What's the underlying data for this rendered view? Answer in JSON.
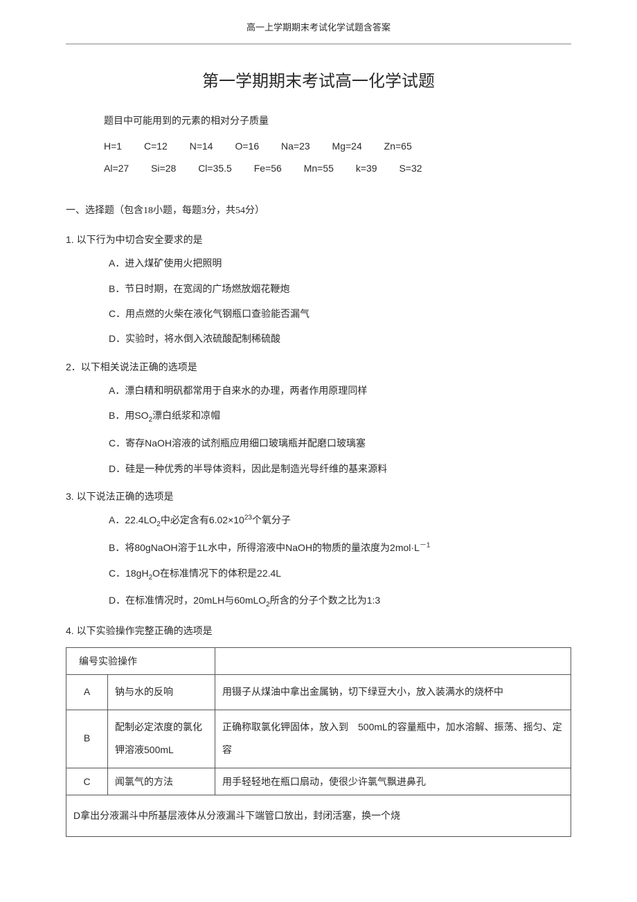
{
  "page_header": "高一上学期期末考试化学试题含答案",
  "title": "第一学期期末考试高一化学试题",
  "molar_intro": "题目中可能用到的元素的相对分子质量",
  "molar_line1": {
    "h": "H=1",
    "c": "C=12",
    "n": "N=14",
    "o": "O=16",
    "na": "Na=23",
    "mg": "Mg=24",
    "zn": "Zn=65"
  },
  "molar_line2": {
    "al": "Al=27",
    "si": "Si=28",
    "cl": "Cl=35.5",
    "fe": "Fe=56",
    "mn": "Mn=55",
    "k": "k=39",
    "s": "S=32"
  },
  "section1": "一、选择题（包含18小题，每题3分，共54分）",
  "q1": {
    "stem": "1. 以下行为中切合安全要求的是",
    "a": "A．进入煤矿使用火把照明",
    "b": "B．节日时期，在宽阔的广场燃放烟花鞭炮",
    "c": "C．用点燃的火柴在液化气钢瓶口查验能否漏气",
    "d": "D．实验时，将水倒入浓硫酸配制稀硫酸"
  },
  "q2": {
    "stem": "2．以下相关说法正确的选项是",
    "a": "A．漂白精和明矾都常用于自来水的办理，两者作用原理同样",
    "b_pre": "B．用SO",
    "b_sub": "2",
    "b_post": "漂白纸浆和凉帽",
    "c": "C．寄存NaOH溶液的试剂瓶应用细口玻璃瓶并配磨口玻璃塞",
    "d": "D．硅是一种优秀的半导体资料，因此是制造光导纤维的基来源料"
  },
  "q3": {
    "stem": "3. 以下说法正确的选项是",
    "a_pre": "A．22.4LO",
    "a_sub1": "2",
    "a_mid": "中必定含有6.02×10",
    "a_sup": "23",
    "a_post": "个氧分子",
    "b_pre": "B．将80gNaOH溶于1L水中，所得溶液中NaOH的物质的量浓度为2mol·L",
    "b_sup": "－1",
    "c_pre": "C．18gH",
    "c_sub": "2",
    "c_post": "O在标准情况下的体积是22.4L",
    "d_pre": "D．在标准情况时，20mLH与60mLO",
    "d_sub": "2",
    "d_post": "所含的分子个数之比为1:3"
  },
  "q4": {
    "stem": "4. 以下实验操作完整正确的选项是",
    "table": {
      "header": {
        "c1": "编号",
        "c2": "实验操作",
        "c3": ""
      },
      "rows": [
        {
          "id": "A",
          "op": "钠与水的反响",
          "desc": "用镊子从煤油中拿出金属钠，切下绿豆大小，放入装满水的烧杯中"
        },
        {
          "id": "B",
          "op": "配制必定浓度的氯化钾溶液500mL",
          "desc": "正确称取氯化钾固体，放入到　500mL的容量瓶中，加水溶解、振荡、摇匀、定容"
        },
        {
          "id": "C",
          "op": "闻氯气的方法",
          "desc": "用手轻轻地在瓶口扇动，使很少许氯气飘进鼻孔"
        },
        {
          "id": "D",
          "op": "D拿出分液漏斗中所基层液体从分液漏斗下端管口放出，封闭活塞，换一个烧"
        }
      ]
    }
  }
}
